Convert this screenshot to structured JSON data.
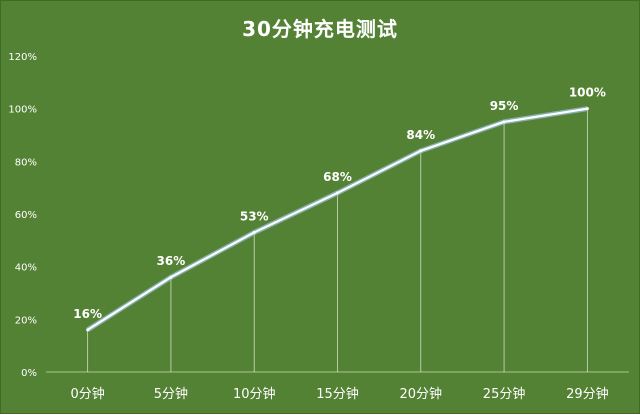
{
  "chart_data": {
    "type": "line",
    "title": "30分钟充电测试",
    "categories": [
      "0分钟",
      "5分钟",
      "10分钟",
      "15分钟",
      "20分钟",
      "25分钟",
      "29分钟"
    ],
    "series": [
      {
        "values": [
          16,
          36,
          53,
          68,
          84,
          95,
          100
        ]
      }
    ],
    "data_labels": [
      "16%",
      "36%",
      "53%",
      "68%",
      "84%",
      "95%",
      "100%"
    ],
    "y_ticks": [
      "0%",
      "20%",
      "40%",
      "60%",
      "80%",
      "100%",
      "120%"
    ],
    "y_tick_values": [
      0,
      20,
      40,
      60,
      80,
      100,
      120
    ],
    "ylim": [
      0,
      120
    ],
    "xlabel": "",
    "ylabel": "",
    "grid": false,
    "drop_lines": true,
    "colors": {
      "background": "#548235",
      "line": "#ffffff",
      "line_glow": "#9dc3e6",
      "drop_line": "#e2efda",
      "text": "#ffffff"
    }
  }
}
